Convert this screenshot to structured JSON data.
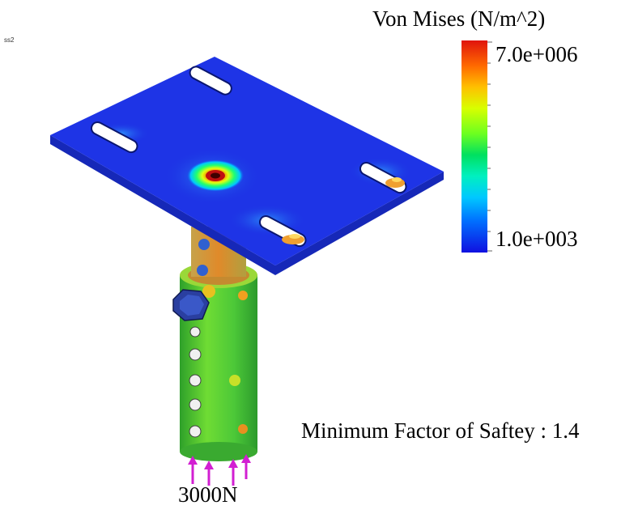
{
  "corner_label": "ss2",
  "legend": {
    "title": "Von Mises (N/m^2)",
    "max_label": "7.0e+006",
    "min_label": "1.0e+003",
    "colors": [
      "#e0140c",
      "#ff6a00",
      "#ffc000",
      "#d8ff00",
      "#6cff20",
      "#00e060",
      "#00f0c0",
      "#00c8ff",
      "#0070ff",
      "#1010e0"
    ]
  },
  "safety_text": "Minimum Factor of Saftey : 1.4",
  "force_label": "3000N",
  "colors": {
    "plate": "#1a2ee0",
    "tube": "#46c234",
    "load_arrow": "#d21fd2"
  }
}
